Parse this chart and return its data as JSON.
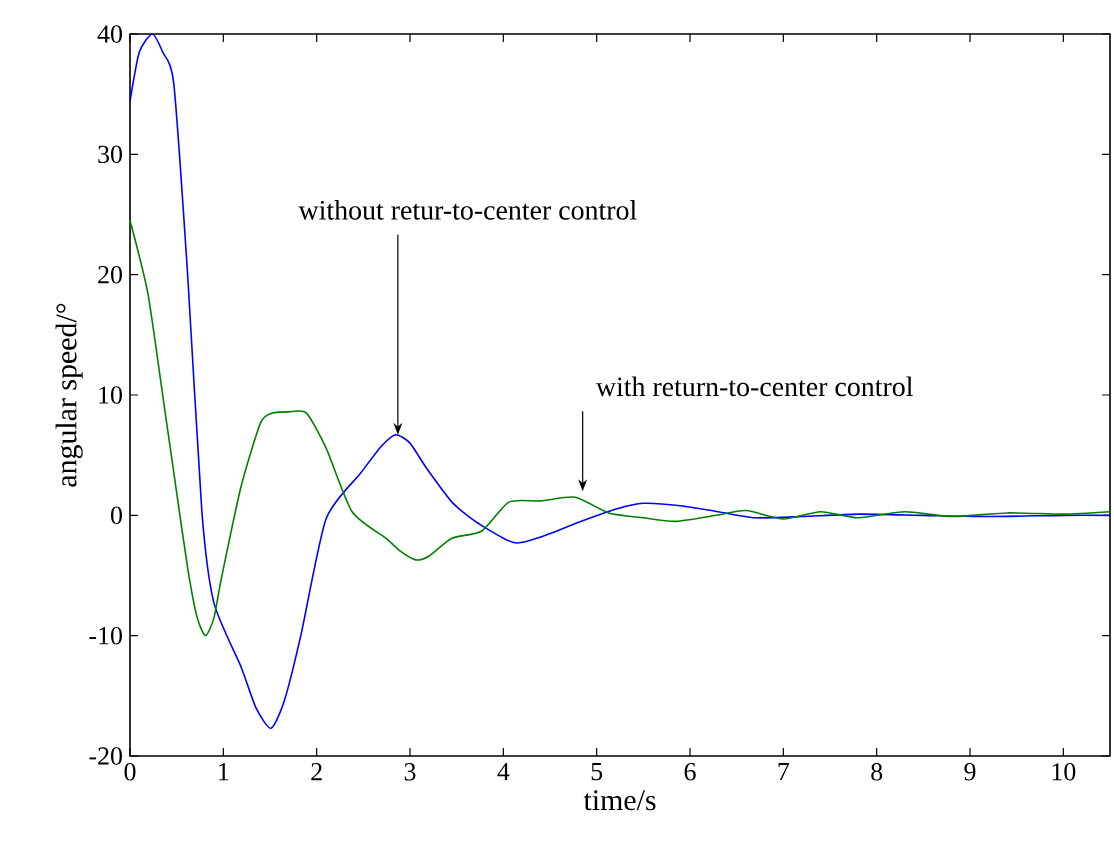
{
  "chart_data": {
    "type": "line",
    "xlabel": "time/s",
    "ylabel": "angular speed/°",
    "xlim": [
      0,
      10.5
    ],
    "ylim": [
      -20,
      40
    ],
    "xticks": [
      0,
      1,
      2,
      3,
      4,
      5,
      6,
      7,
      8,
      9,
      10
    ],
    "yticks": [
      -20,
      -10,
      0,
      10,
      20,
      30,
      40
    ],
    "grid": false,
    "marker": "none",
    "line_style": "solid",
    "series": [
      {
        "color": "#0000ff",
        "x": [
          0,
          0.1,
          0.24,
          0.35,
          0.47,
          0.62,
          0.77,
          0.9,
          1.19,
          1.35,
          1.51,
          1.65,
          1.83,
          2.1,
          2.47,
          2.7,
          2.85,
          3.0,
          3.17,
          3.45,
          3.7,
          4.0,
          4.15,
          4.4,
          4.8,
          5.2,
          5.5,
          5.9,
          6.3,
          6.7,
          7.2,
          7.8,
          8.5,
          9.2,
          10,
          10.5
        ],
        "values": [
          34.4,
          38.5,
          40,
          38.5,
          35.8,
          19.7,
          0.3,
          -7.3,
          -12.6,
          -16,
          -17.7,
          -15.5,
          -10,
          -0.3,
          3.5,
          5.8,
          6.7,
          6,
          4,
          1.1,
          -0.5,
          -1.9,
          -2.3,
          -1.8,
          -0.6,
          0.5,
          1.0,
          0.8,
          0.3,
          -0.2,
          -0.1,
          0.1,
          0,
          -0.1,
          0,
          0
        ]
      },
      {
        "color": "#008000",
        "x": [
          0,
          0.19,
          0.35,
          0.47,
          0.62,
          0.72,
          0.81,
          0.9,
          0.98,
          1.19,
          1.4,
          1.53,
          1.7,
          1.89,
          2.1,
          2.38,
          2.74,
          2.9,
          3.06,
          3.2,
          3.45,
          3.77,
          4.06,
          4.4,
          4.77,
          5.13,
          5.5,
          5.85,
          6.28,
          6.6,
          7.0,
          7.4,
          7.8,
          8.3,
          8.8,
          9.4,
          10,
          10.5
        ],
        "values": [
          24.5,
          18.5,
          10,
          3.5,
          -4.5,
          -8.5,
          -10,
          -8.5,
          -5.2,
          2.4,
          7.7,
          8.5,
          8.6,
          8.5,
          5.6,
          0.3,
          -1.9,
          -3,
          -3.7,
          -3.4,
          -1.9,
          -1.3,
          1.1,
          1.2,
          1.5,
          0.2,
          -0.2,
          -0.5,
          0,
          0.4,
          -0.3,
          0.3,
          -0.2,
          0.3,
          -0.1,
          0.2,
          0.1,
          0.3
        ]
      }
    ],
    "annotations": [
      {
        "text": "without retur-to-center control",
        "x": 2.87,
        "y": 6.7
      },
      {
        "text": "with return-to-center control",
        "x": 4.85,
        "y": 2
      }
    ]
  }
}
